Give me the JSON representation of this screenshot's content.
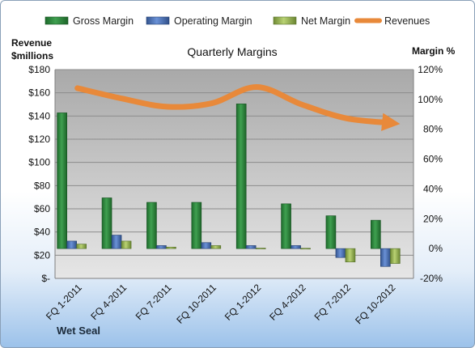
{
  "chart_data": {
    "type": "bar+line",
    "title": "Quarterly Margins",
    "company": "Wet Seal",
    "categories": [
      "FQ 1-2011",
      "FQ 4-2011",
      "FQ 7-2011",
      "FQ 10-2011",
      "FQ 1-2012",
      "FQ 4-2012",
      "FQ 7-2012",
      "FQ 10-2012"
    ],
    "left_axis": {
      "label_line1": "Revenue",
      "label_line2": "$millions",
      "ylim": [
        0,
        180
      ],
      "ticks": [
        "$-",
        "$20",
        "$40",
        "$60",
        "$80",
        "$100",
        "$120",
        "$140",
        "$160",
        "$180"
      ]
    },
    "right_axis": {
      "label": "Margin %",
      "ylim": [
        -20,
        120
      ],
      "ticks": [
        "-20%",
        "0%",
        "20%",
        "40%",
        "60%",
        "80%",
        "100%",
        "120%"
      ]
    },
    "series": [
      {
        "name": "Gross Margin",
        "axis": "right",
        "color": "#2e8b3e",
        "values": [
          91,
          34,
          31,
          31,
          97,
          30,
          22,
          19
        ]
      },
      {
        "name": "Operating Margin",
        "axis": "right",
        "color": "#4f79c4",
        "values": [
          5,
          9,
          2,
          4,
          2,
          2,
          -6,
          -12
        ]
      },
      {
        "name": "Net Margin",
        "axis": "right",
        "color": "#9bbb59",
        "values": [
          3,
          5,
          1,
          2,
          0.3,
          0.2,
          -9,
          -10
        ]
      },
      {
        "name": "Revenues",
        "axis": "left",
        "color": "#e8893a",
        "values": [
          164,
          155,
          148,
          151,
          165,
          150,
          138,
          134
        ]
      }
    ],
    "grid": true,
    "legend_position": "top"
  }
}
